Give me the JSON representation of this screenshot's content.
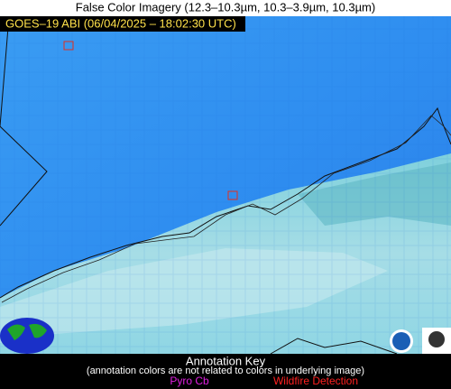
{
  "header": {
    "title": "False Color Imagery (12.3–10.3µm, 10.3–3.9µm, 10.3µm)"
  },
  "image": {
    "label": "GOES–19 ABI (06/04/2025 – 18:02:30 UTC)"
  },
  "key": {
    "title": "Annotation Key",
    "note": "(annotation colors are not related to colors in underlying image)",
    "items": [
      "Pyro Cb",
      "Wildfire Detection"
    ]
  }
}
